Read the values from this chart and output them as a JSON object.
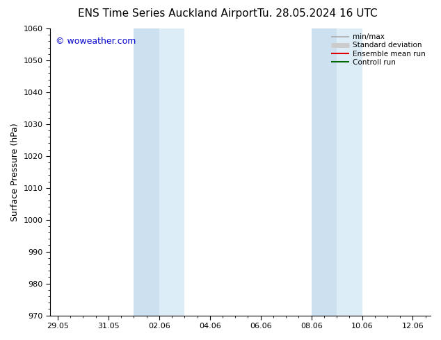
{
  "title_left": "ENS Time Series Auckland Airport",
  "title_right": "Tu. 28.05.2024 16 UTC",
  "ylabel": "Surface Pressure (hPa)",
  "ylim": [
    970,
    1060
  ],
  "yticks": [
    970,
    980,
    990,
    1000,
    1010,
    1020,
    1030,
    1040,
    1050,
    1060
  ],
  "xtick_labels": [
    "29.05",
    "31.05",
    "02.06",
    "04.06",
    "06.06",
    "08.06",
    "10.06",
    "12.06"
  ],
  "xtick_positions": [
    0,
    2,
    4,
    6,
    8,
    10,
    12,
    14
  ],
  "xlim": [
    -0.3,
    14.7
  ],
  "watermark": "© woweather.com",
  "watermark_color": "#0000cc",
  "background_color": "#ffffff",
  "plot_bg_color": "#ffffff",
  "shaded_bands": [
    {
      "xstart": 3.0,
      "xend": 4.0,
      "color": "#cce0f0"
    },
    {
      "xstart": 4.0,
      "xend": 5.0,
      "color": "#ddedf8"
    },
    {
      "xstart": 10.0,
      "xend": 11.0,
      "color": "#cce0f0"
    },
    {
      "xstart": 11.0,
      "xend": 12.0,
      "color": "#ddedf8"
    }
  ],
  "legend_entries": [
    {
      "label": "min/max",
      "color": "#aaaaaa",
      "lw": 1.2,
      "style": "line_with_caps"
    },
    {
      "label": "Standard deviation",
      "color": "#cccccc",
      "lw": 5,
      "style": "thick"
    },
    {
      "label": "Ensemble mean run",
      "color": "#dd0000",
      "lw": 1.5,
      "style": "line"
    },
    {
      "label": "Controll run",
      "color": "#006600",
      "lw": 1.5,
      "style": "line"
    }
  ],
  "font_size_title": 11,
  "font_size_axis": 9,
  "font_size_tick": 8,
  "font_size_legend": 7.5,
  "font_size_watermark": 9
}
